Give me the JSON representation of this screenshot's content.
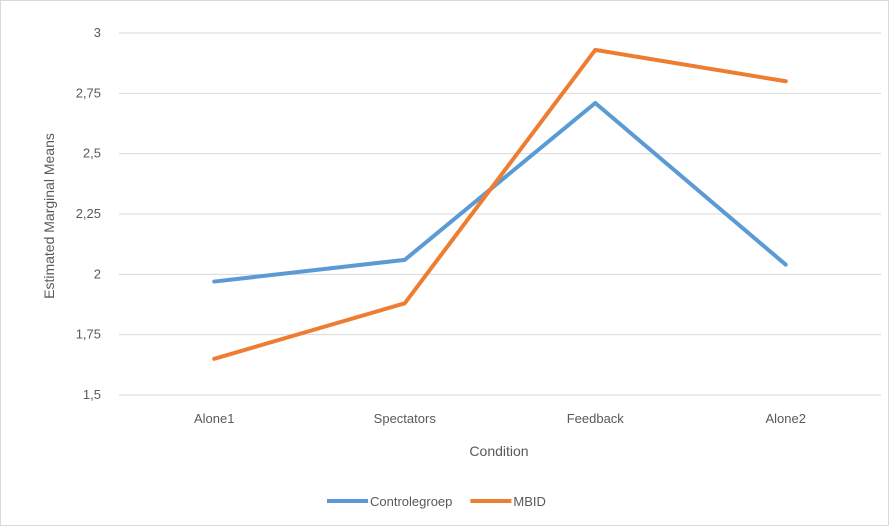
{
  "chart_data": {
    "type": "line",
    "title": "",
    "xlabel": "Condition",
    "ylabel": "Estimated Marginal Means",
    "categories": [
      "Alone1",
      "Spectators",
      "Feedback",
      "Alone2"
    ],
    "ylim": [
      1.5,
      3
    ],
    "y_ticks": [
      1.5,
      1.75,
      2,
      2.25,
      2.5,
      2.75,
      3
    ],
    "y_tick_labels": [
      "1,5",
      "1,75",
      "2",
      "2,25",
      "2,5",
      "2,75",
      "3"
    ],
    "grid": "horizontal",
    "legend_position": "bottom",
    "series": [
      {
        "name": "Controlegroep",
        "color": "#5b9bd5",
        "values": [
          1.97,
          2.06,
          2.71,
          2.04
        ]
      },
      {
        "name": "MBID",
        "color": "#ed7d31",
        "values": [
          1.65,
          1.88,
          2.93,
          2.8
        ]
      }
    ]
  }
}
